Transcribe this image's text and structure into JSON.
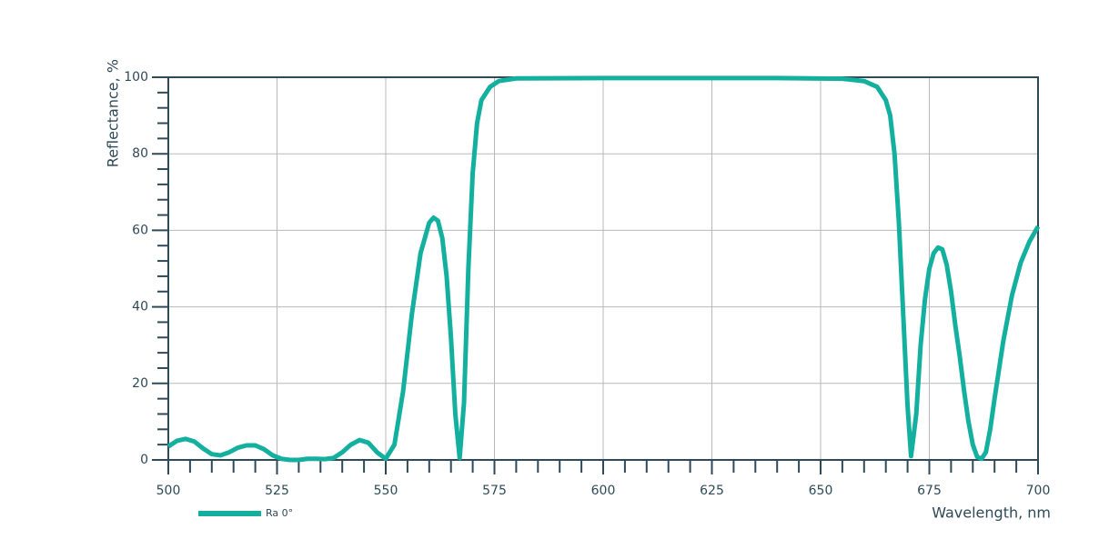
{
  "chart_data": {
    "type": "line",
    "x_label": "Wavelength, nm",
    "y_label": "Reflectance, %",
    "x": [
      500,
      502,
      504,
      506,
      508,
      510,
      512,
      514,
      516,
      518,
      520,
      522,
      524,
      526,
      528,
      530,
      532,
      534,
      536,
      538,
      540,
      542,
      544,
      546,
      548,
      550,
      552,
      554,
      556,
      558,
      560,
      561,
      562,
      563,
      564,
      565,
      566,
      567,
      568,
      569,
      570,
      571,
      572,
      574,
      576,
      580,
      600,
      620,
      640,
      655,
      660,
      663,
      665,
      666,
      667,
      668,
      669,
      670,
      670.8,
      672,
      673,
      674,
      675,
      676,
      677,
      678,
      679,
      680,
      681,
      682,
      683,
      684,
      685,
      686,
      687,
      688,
      689,
      690,
      692,
      694,
      696,
      698,
      700
    ],
    "series": [
      {
        "name": "Ra 0°",
        "color": "#14b09f",
        "values": [
          3.5,
          5,
          5.5,
          4.8,
          3,
          1.5,
          1.2,
          2,
          3.2,
          3.8,
          3.8,
          2.8,
          1.2,
          0.3,
          0,
          0,
          0.3,
          0.3,
          0.2,
          0.5,
          2,
          4,
          5.2,
          4.5,
          2,
          0.3,
          4,
          18,
          38,
          54,
          62,
          63.3,
          62.5,
          58,
          48,
          32,
          12,
          0.5,
          15,
          50,
          75,
          88,
          94,
          97.5,
          99,
          99.7,
          99.8,
          99.8,
          99.8,
          99.6,
          99,
          97.5,
          94,
          90,
          80,
          62,
          38,
          14,
          1,
          12,
          30,
          42,
          50,
          54,
          55.5,
          55,
          51,
          44,
          35,
          27,
          18,
          10,
          4,
          0.8,
          0.3,
          2,
          8,
          16,
          31,
          43,
          51.5,
          57,
          61
        ]
      }
    ],
    "xlim": [
      500,
      700
    ],
    "ylim": [
      0,
      100
    ],
    "xticks": [
      500,
      525,
      550,
      575,
      600,
      625,
      650,
      675,
      700
    ],
    "yticks": [
      0,
      20,
      40,
      60,
      80,
      100
    ],
    "xminorticks": [
      505,
      510,
      515,
      520,
      530,
      535,
      540,
      545,
      555,
      560,
      565,
      570,
      580,
      585,
      590,
      595,
      605,
      610,
      615,
      620,
      630,
      635,
      640,
      645,
      655,
      660,
      665,
      670,
      680,
      685,
      690,
      695
    ],
    "yminorticks": [
      4,
      8,
      12,
      16,
      24,
      28,
      32,
      36,
      44,
      48,
      52,
      56,
      64,
      68,
      72,
      76,
      84,
      88,
      92,
      96
    ],
    "grid": true,
    "axis_color": "#2e4a58",
    "grid_color": "#b8b8b8"
  }
}
